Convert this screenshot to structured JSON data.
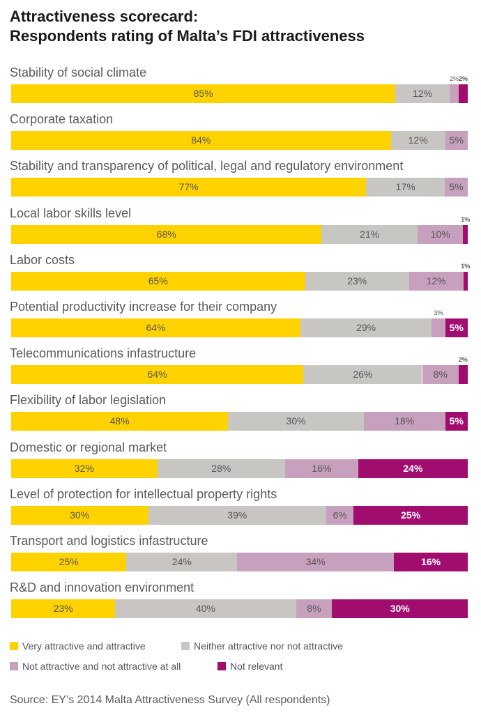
{
  "title_line1": "Attractiveness scorecard:",
  "title_line2": "Respondents rating of Malta’s FDI attractiveness",
  "source": "Source: EY’s 2014 Malta Attractiveness Survey (All respondents)",
  "colors": {
    "very_attractive": "#FFD200",
    "neither": "#C8C6C3",
    "not_attractive": "#C7A0BE",
    "not_relevant": "#A10D6E"
  },
  "chart_data": {
    "type": "bar",
    "orientation": "horizontal",
    "stacked": true,
    "title": "Attractiveness scorecard: Respondents rating of Malta’s FDI attractiveness",
    "categories": [
      "Stability of social climate",
      "Corporate taxation",
      "Stability and transparency of political, legal and regulatory environment",
      "Local labor skills level",
      "Labor costs",
      "Potential productivity increase for their company",
      "Telecommunications infastructure",
      "Flexibility of labor legislation",
      "Domestic or regional market",
      "Level of protection for intellectual property rights",
      "Transport and logistics infastructure",
      "R&D and innovation environment"
    ],
    "series": [
      {
        "name": "Very attractive and attractive",
        "values": [
          85,
          84,
          77,
          68,
          65,
          64,
          64,
          48,
          32,
          30,
          25,
          23
        ]
      },
      {
        "name": "Neither attractive nor not attractive",
        "values": [
          12,
          12,
          17,
          21,
          23,
          29,
          26,
          30,
          28,
          39,
          24,
          40
        ]
      },
      {
        "name": "Not attractive and not attractive at all",
        "values": [
          2,
          5,
          5,
          10,
          12,
          3,
          8,
          18,
          16,
          6,
          34,
          8
        ]
      },
      {
        "name": "Not relevant",
        "values": [
          2,
          0,
          0,
          1,
          1,
          5,
          2,
          5,
          24,
          25,
          16,
          30
        ]
      }
    ],
    "unit": "%",
    "legend_position": "bottom"
  }
}
